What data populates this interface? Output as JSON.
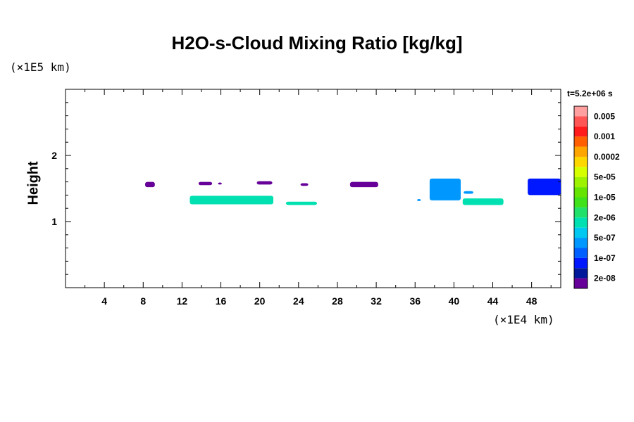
{
  "chart_data": {
    "type": "heatmap",
    "title": "H2O-s-Cloud Mixing Ratio [kg/kg]",
    "ylabel": "Height",
    "xlabel": "",
    "x_unit": "(×1E4 km)",
    "y_unit": "(×1E5 km)",
    "xlim": [
      0,
      51
    ],
    "ylim": [
      0,
      3
    ],
    "x_ticks": [
      4,
      8,
      12,
      16,
      20,
      24,
      28,
      32,
      36,
      40,
      44,
      48
    ],
    "y_ticks": [
      1,
      2
    ],
    "time_label": "t=5.2e+06 s",
    "colorbar": {
      "labels": [
        "0.005",
        "0.001",
        "0.0002",
        "5e-05",
        "1e-05",
        "2e-06",
        "5e-07",
        "1e-07",
        "2e-08"
      ],
      "colors": [
        "#ff9f9f",
        "#ff5555",
        "#ff1b1b",
        "#ff5f00",
        "#ffa500",
        "#ffd700",
        "#d6ff00",
        "#9cf200",
        "#64e400",
        "#3ee11a",
        "#22e16a",
        "#00e0b0",
        "#00c8f0",
        "#0098ff",
        "#0060ff",
        "#0018ff",
        "#00189a",
        "#660099"
      ]
    },
    "regions": [
      {
        "x": [
          8.2,
          9.2
        ],
        "y": [
          1.52,
          1.6
        ],
        "level": "2e-08"
      },
      {
        "x": [
          13.7,
          15.1
        ],
        "y": [
          1.55,
          1.6
        ],
        "level": "2e-08"
      },
      {
        "x": [
          15.7,
          16.1
        ],
        "y": [
          1.56,
          1.59
        ],
        "level": "2e-08"
      },
      {
        "x": [
          19.7,
          21.3
        ],
        "y": [
          1.56,
          1.61
        ],
        "level": "2e-08"
      },
      {
        "x": [
          24.2,
          25.0
        ],
        "y": [
          1.54,
          1.58
        ],
        "level": "2e-08"
      },
      {
        "x": [
          29.3,
          32.2
        ],
        "y": [
          1.52,
          1.6
        ],
        "level": "2e-08"
      },
      {
        "x": [
          37.5,
          40.7
        ],
        "y": [
          1.32,
          1.65
        ],
        "level": "5e-07"
      },
      {
        "x": [
          41.0,
          42.0
        ],
        "y": [
          1.42,
          1.46
        ],
        "level": "5e-07"
      },
      {
        "x": [
          47.6,
          51.0
        ],
        "y": [
          1.4,
          1.65
        ],
        "level": "1e-07"
      },
      {
        "x": [
          12.8,
          21.4
        ],
        "y": [
          1.26,
          1.39
        ],
        "level": "2e-06"
      },
      {
        "x": [
          22.7,
          25.9
        ],
        "y": [
          1.25,
          1.3
        ],
        "level": "2e-06"
      },
      {
        "x": [
          36.2,
          36.6
        ],
        "y": [
          1.31,
          1.34
        ],
        "level": "5e-07"
      },
      {
        "x": [
          40.9,
          45.1
        ],
        "y": [
          1.25,
          1.35
        ],
        "level": "2e-06"
      }
    ]
  }
}
